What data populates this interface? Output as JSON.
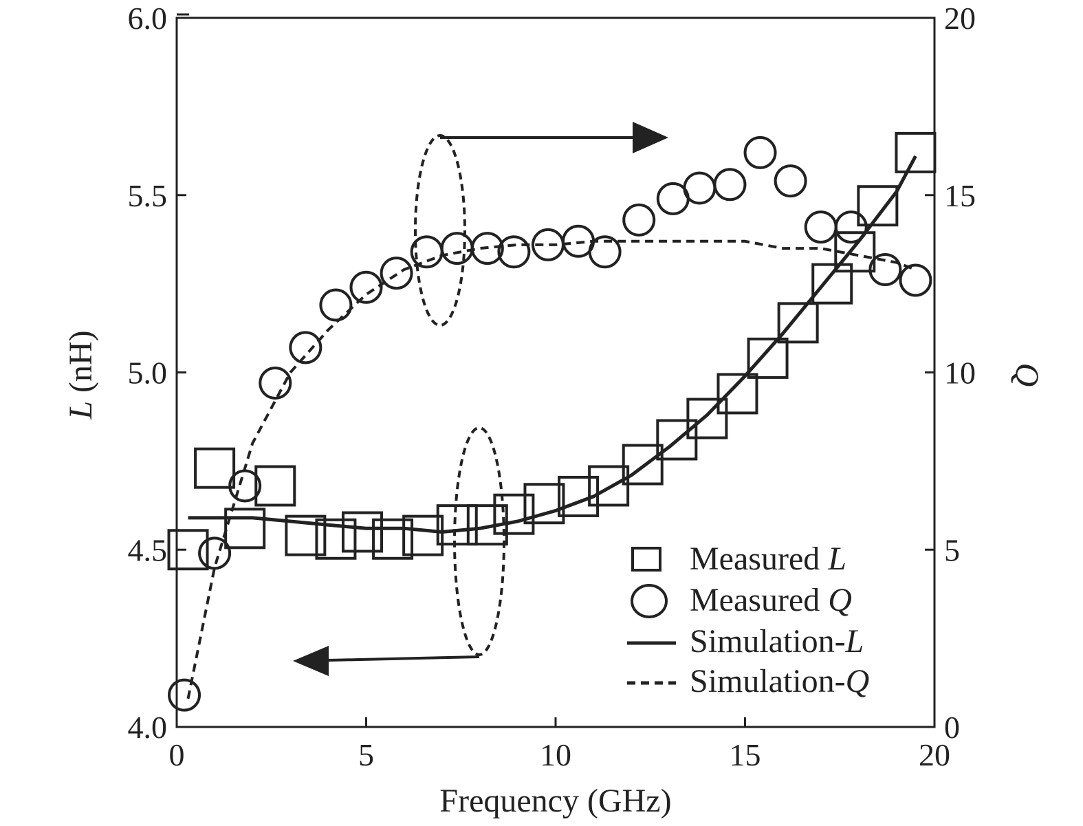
{
  "chart_data": {
    "type": "scatter",
    "x_axis": {
      "label": "Frequency (GHz)",
      "range": [
        0,
        20
      ],
      "ticks": [
        "0",
        "5",
        "10",
        "15",
        "20"
      ]
    },
    "y_axis_left": {
      "label_italic": "L",
      "label_rest": " (nH)",
      "range": [
        4.0,
        6.0
      ],
      "ticks": [
        "4.0",
        "4.5",
        "5.0",
        "5.5",
        "6.0"
      ]
    },
    "y_axis_right": {
      "label": "Q",
      "range": [
        0,
        20
      ],
      "ticks": [
        "0",
        "5",
        "10",
        "15",
        "20"
      ]
    },
    "series": [
      {
        "name_plain": "Measured ",
        "name_italic": "L",
        "axis": "left",
        "marker": "square",
        "x": [
          0.3,
          1.0,
          1.8,
          2.6,
          3.4,
          4.2,
          4.9,
          5.7,
          6.5,
          7.4,
          8.2,
          8.9,
          9.7,
          10.6,
          11.4,
          12.3,
          13.2,
          14.0,
          14.8,
          15.6,
          16.4,
          17.3,
          17.9,
          18.5,
          19.5
        ],
        "y": [
          4.5,
          4.73,
          4.56,
          4.68,
          4.54,
          4.53,
          4.55,
          4.53,
          4.54,
          4.57,
          4.57,
          4.6,
          4.63,
          4.65,
          4.68,
          4.74,
          4.81,
          4.87,
          4.94,
          5.04,
          5.14,
          5.25,
          5.34,
          5.47,
          5.62
        ]
      },
      {
        "name_plain": "Measured ",
        "name_italic": "Q",
        "axis": "right",
        "marker": "circle",
        "x": [
          0.2,
          1.0,
          1.8,
          2.6,
          3.4,
          4.2,
          5.0,
          5.8,
          6.6,
          7.4,
          8.2,
          8.9,
          9.8,
          10.6,
          11.3,
          12.2,
          13.1,
          13.8,
          14.6,
          15.4,
          16.2,
          17.0,
          17.8,
          18.7,
          19.5
        ],
        "y": [
          0.9,
          4.9,
          6.8,
          9.7,
          10.7,
          11.9,
          12.4,
          12.8,
          13.4,
          13.5,
          13.5,
          13.4,
          13.6,
          13.7,
          13.4,
          14.3,
          14.9,
          15.2,
          15.3,
          16.2,
          15.4,
          14.1,
          14.1,
          12.9,
          12.6
        ]
      },
      {
        "name_plain": "Simulation-",
        "name_italic": "L",
        "axis": "left",
        "line": "solid",
        "x": [
          0.3,
          1,
          2,
          3,
          4,
          5,
          6,
          7,
          8,
          9,
          10,
          11,
          12,
          13,
          14,
          15,
          16,
          17,
          18,
          19,
          19.5
        ],
        "y": [
          4.59,
          4.59,
          4.59,
          4.58,
          4.57,
          4.56,
          4.56,
          4.55,
          4.56,
          4.58,
          4.61,
          4.65,
          4.71,
          4.79,
          4.88,
          4.99,
          5.11,
          5.24,
          5.37,
          5.51,
          5.61
        ]
      },
      {
        "name_plain": "Simulation-",
        "name_italic": "Q",
        "axis": "right",
        "line": "dashed",
        "x": [
          0.3,
          1,
          2,
          3,
          4,
          5,
          6,
          7,
          8,
          9,
          10,
          11,
          12,
          13,
          14,
          15,
          16,
          17,
          18,
          19,
          19.5
        ],
        "y": [
          0.8,
          4.5,
          8.0,
          10.0,
          11.2,
          12.2,
          12.9,
          13.3,
          13.5,
          13.6,
          13.6,
          13.7,
          13.7,
          13.7,
          13.7,
          13.7,
          13.5,
          13.5,
          13.3,
          13.1,
          12.9
        ]
      }
    ],
    "legend_position": "bottom-right",
    "grid": false
  }
}
